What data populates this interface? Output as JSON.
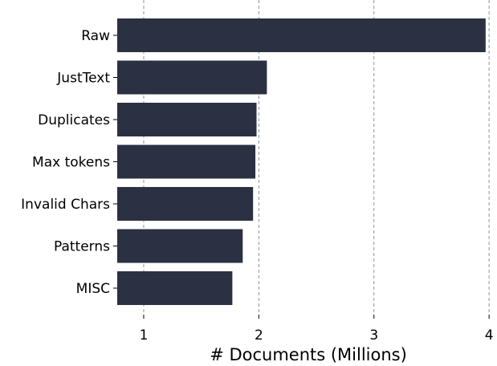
{
  "chart_data": {
    "type": "bar",
    "orientation": "horizontal",
    "categories": [
      "Raw",
      "JustText",
      "Duplicates",
      "Max tokens",
      "Invalid Chars",
      "Patterns",
      "MISC"
    ],
    "values": [
      3.97,
      2.07,
      1.98,
      1.97,
      1.95,
      1.86,
      1.77
    ],
    "title": "",
    "xlabel": "# Documents (Millions)",
    "ylabel": "",
    "xlim": [
      0.77,
      4.02
    ],
    "xticks": [
      1,
      2,
      3,
      4
    ],
    "grid": "x-dashed",
    "colors": {
      "bar": "#2b3042",
      "grid": "#8a94a3"
    }
  }
}
